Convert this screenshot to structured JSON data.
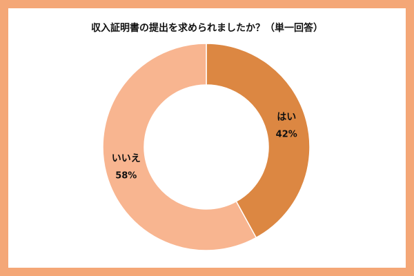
{
  "chart_data": {
    "type": "donut",
    "title": "収入証明書の提出を求められましたか？（単一回答）",
    "categories": [
      "はい",
      "いいえ"
    ],
    "values": [
      42,
      58
    ],
    "value_labels": [
      "42%",
      "58%"
    ],
    "colors": [
      "#dc8742",
      "#f8b590"
    ]
  }
}
